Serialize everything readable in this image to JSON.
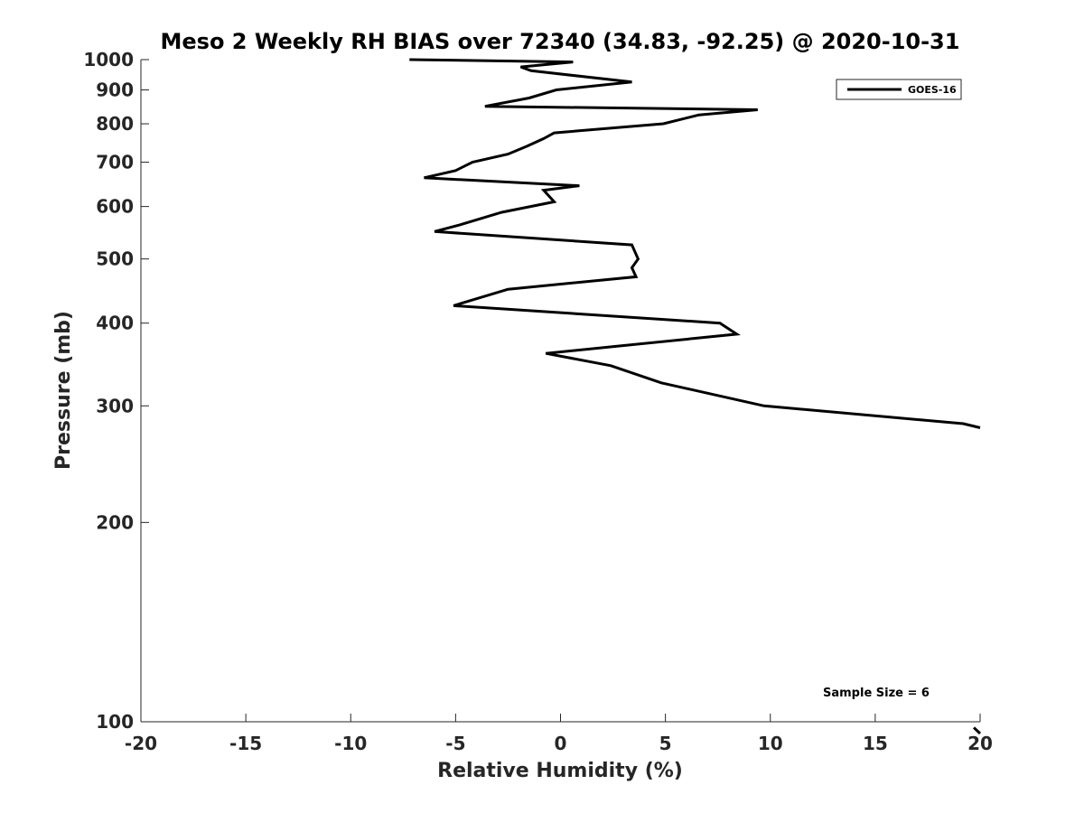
{
  "chart_data": {
    "type": "line",
    "title": "Meso 2 Weekly RH BIAS over 72340 (34.83, -92.25) @ 2020-10-31",
    "xlabel": "Relative Humidity (%)",
    "ylabel": "Pressure (mb)",
    "xlim": [
      -20,
      20
    ],
    "ylim": [
      1000,
      100
    ],
    "y_scale": "log",
    "y_reversed": true,
    "grid": false,
    "legend_position": "top-right",
    "x_ticks": [
      "-20",
      "-15",
      "-10",
      "-5",
      "0",
      "5",
      "10",
      "15",
      "20"
    ],
    "y_ticks": [
      "100",
      "200",
      "300",
      "400",
      "500",
      "600",
      "700",
      "800",
      "900",
      "1000"
    ],
    "series": [
      {
        "name": "GOES-16",
        "color": "#000000",
        "points": [
          {
            "p": 1000,
            "rh": -7.2
          },
          {
            "p": 992,
            "rh": 0.6
          },
          {
            "p": 975,
            "rh": -1.9
          },
          {
            "p": 962,
            "rh": -1.4
          },
          {
            "p": 925,
            "rh": 3.4
          },
          {
            "p": 900,
            "rh": -0.2
          },
          {
            "p": 875,
            "rh": -1.5
          },
          {
            "p": 850,
            "rh": -3.6
          },
          {
            "p": 840,
            "rh": 9.4
          },
          {
            "p": 825,
            "rh": 6.6
          },
          {
            "p": 800,
            "rh": 4.9
          },
          {
            "p": 775,
            "rh": -0.3
          },
          {
            "p": 760,
            "rh": -0.8
          },
          {
            "p": 740,
            "rh": -1.6
          },
          {
            "p": 720,
            "rh": -2.5
          },
          {
            "p": 700,
            "rh": -4.2
          },
          {
            "p": 680,
            "rh": -5.0
          },
          {
            "p": 663,
            "rh": -6.5
          },
          {
            "p": 645,
            "rh": 0.9
          },
          {
            "p": 635,
            "rh": -0.8
          },
          {
            "p": 610,
            "rh": -0.3
          },
          {
            "p": 588,
            "rh": -2.8
          },
          {
            "p": 563,
            "rh": -4.8
          },
          {
            "p": 550,
            "rh": -6.0
          },
          {
            "p": 525,
            "rh": 3.4
          },
          {
            "p": 500,
            "rh": 3.7
          },
          {
            "p": 485,
            "rh": 3.4
          },
          {
            "p": 470,
            "rh": 3.6
          },
          {
            "p": 450,
            "rh": -2.5
          },
          {
            "p": 425,
            "rh": -5.1
          },
          {
            "p": 400,
            "rh": 7.6
          },
          {
            "p": 385,
            "rh": 8.4
          },
          {
            "p": 360,
            "rh": -0.7
          },
          {
            "p": 345,
            "rh": 2.4
          },
          {
            "p": 325,
            "rh": 4.8
          },
          {
            "p": 300,
            "rh": 9.7
          },
          {
            "p": 282,
            "rh": 19.2
          },
          {
            "p": 278,
            "rh": 20.0
          }
        ]
      }
    ],
    "annotations": [
      "Sample Size = 6"
    ]
  }
}
